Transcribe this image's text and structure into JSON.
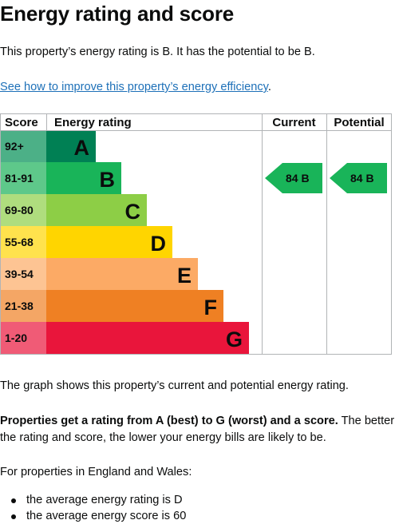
{
  "heading": "Energy rating and score",
  "summary": "This property’s energy rating is B. It has the potential to be B.",
  "improve_link": "See how to improve this property’s energy efficiency",
  "improve_link_suffix": ".",
  "graph_caption": "The graph shows this property’s current and potential energy rating.",
  "rating_info_bold": "Properties get a rating from A (best) to G (worst) and a score.",
  "rating_info_rest": " The better the rating and score, the lower your energy bills are likely to be.",
  "region_intro": "For properties in England and Wales:",
  "averages": [
    "the average energy rating is D",
    "the average energy score is 60"
  ],
  "chart_data": {
    "type": "bar",
    "headers": {
      "score": "Score",
      "rating": "Energy rating",
      "current": "Current",
      "potential": "Potential"
    },
    "bands": [
      {
        "range": "92+",
        "letter": "A",
        "color": "#008054",
        "score_bg": "#4cb087",
        "level": 1
      },
      {
        "range": "81-91",
        "letter": "B",
        "color": "#19b459",
        "score_bg": "#5ec88a",
        "level": 2
      },
      {
        "range": "69-80",
        "letter": "C",
        "color": "#8dce46",
        "score_bg": "#afdd7e",
        "level": 3
      },
      {
        "range": "55-68",
        "letter": "D",
        "color": "#ffd500",
        "score_bg": "#ffe24d",
        "level": 4
      },
      {
        "range": "39-54",
        "letter": "E",
        "color": "#fcaa65",
        "score_bg": "#fdc493",
        "level": 5
      },
      {
        "range": "21-38",
        "letter": "F",
        "color": "#ef8023",
        "score_bg": "#f4a665",
        "level": 6
      },
      {
        "range": "1-20",
        "letter": "G",
        "color": "#e9153b",
        "score_bg": "#f05b76",
        "level": 7
      }
    ],
    "current": {
      "score": 84,
      "letter": "B",
      "label": "84  B"
    },
    "potential": {
      "score": 84,
      "letter": "B",
      "label": "84  B"
    }
  }
}
